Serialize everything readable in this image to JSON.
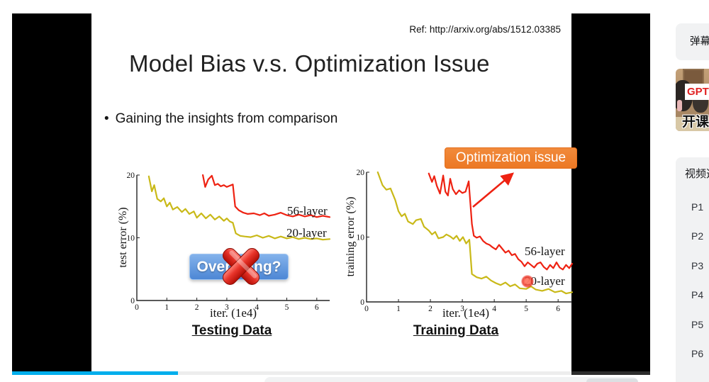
{
  "slide": {
    "ref": "Ref: http://arxiv.org/abs/1512.03385",
    "title": "Model Bias v.s. Optimization Issue",
    "bullet": "Gaining the insights from comparison",
    "overfitting_badge": "Overfitting?",
    "optimization_badge": "Optimization issue",
    "accent_orange": "#ED7D31",
    "accent_blue": "#4d87d5",
    "curve_red": "#ee2212",
    "curve_yellow": "#c9b918"
  },
  "chart_data": [
    {
      "type": "line",
      "title": "Testing Data",
      "xlabel": "iter. (1e4)",
      "ylabel": "test error (%)",
      "xlim": [
        0,
        6.43
      ],
      "ylim": [
        0,
        20
      ],
      "xticks": [
        0,
        1,
        2,
        3,
        4,
        5,
        6
      ],
      "yticks": [
        0,
        10,
        20
      ],
      "grid": false,
      "series": [
        {
          "name": "56-layer",
          "color": "#ee2212",
          "x": [
            2.2,
            2.28,
            2.38,
            2.5,
            2.6,
            2.7,
            2.8,
            2.9,
            3.0,
            3.1,
            3.2,
            3.28,
            3.4,
            3.55,
            3.7,
            3.9,
            4.1,
            4.25,
            4.4,
            4.6,
            4.8,
            5.0,
            5.2,
            5.4,
            5.6,
            5.8,
            6.0,
            6.2,
            6.43
          ],
          "y": [
            20.0,
            18.1,
            19.3,
            19.9,
            18.4,
            18.6,
            18.2,
            18.4,
            18.1,
            18.3,
            18.5,
            15.0,
            14.4,
            14.0,
            13.8,
            13.9,
            13.6,
            13.9,
            13.5,
            13.7,
            14.0,
            13.6,
            13.4,
            13.7,
            13.4,
            13.6,
            13.3,
            13.5,
            13.3
          ]
        },
        {
          "name": "20-layer",
          "color": "#c9b918",
          "x": [
            0.4,
            0.5,
            0.58,
            0.68,
            0.8,
            0.9,
            1.0,
            1.1,
            1.2,
            1.35,
            1.5,
            1.62,
            1.75,
            1.9,
            2.0,
            2.15,
            2.3,
            2.45,
            2.6,
            2.75,
            2.9,
            3.0,
            3.1,
            3.2,
            3.3,
            3.45,
            3.6,
            3.8,
            4.0,
            4.2,
            4.4,
            4.6,
            4.8,
            5.0,
            5.2,
            5.4,
            5.6,
            5.8,
            6.0,
            6.2,
            6.43
          ],
          "y": [
            19.8,
            17.4,
            18.4,
            16.2,
            15.8,
            16.3,
            15.0,
            15.6,
            14.5,
            14.9,
            14.1,
            14.6,
            13.8,
            14.2,
            13.2,
            13.9,
            13.1,
            13.7,
            12.9,
            13.4,
            12.7,
            13.1,
            12.6,
            12.4,
            10.7,
            10.3,
            10.2,
            10.1,
            10.4,
            10.0,
            10.3,
            9.9,
            10.2,
            9.9,
            10.1,
            9.8,
            10.0,
            9.8,
            9.9,
            9.7,
            9.8
          ]
        }
      ]
    },
    {
      "type": "line",
      "title": "Training Data",
      "xlabel": "iter. (1e4)",
      "ylabel": "training error (%)",
      "xlim": [
        0,
        6.44
      ],
      "ylim": [
        0,
        20
      ],
      "xticks": [
        0,
        1,
        2,
        3,
        4,
        5,
        6
      ],
      "yticks": [
        0,
        10,
        20
      ],
      "grid": false,
      "series": [
        {
          "name": "56-layer",
          "color": "#ee2212",
          "x": [
            1.95,
            2.05,
            2.12,
            2.2,
            2.3,
            2.4,
            2.47,
            2.55,
            2.62,
            2.7,
            2.8,
            2.9,
            3.0,
            3.1,
            3.2,
            3.3,
            3.36,
            3.45,
            3.55,
            3.65,
            3.75,
            3.85,
            3.95,
            4.05,
            4.15,
            4.25,
            4.35,
            4.45,
            4.55,
            4.65,
            4.75,
            4.85,
            4.95,
            5.05,
            5.15,
            5.25,
            5.35,
            5.45,
            5.55,
            5.65,
            5.75,
            5.85,
            5.95,
            6.05,
            6.15,
            6.25,
            6.35,
            6.44
          ],
          "y": [
            19.8,
            18.5,
            19.4,
            17.9,
            16.7,
            19.5,
            17.0,
            16.4,
            19.0,
            17.4,
            16.6,
            17.2,
            16.8,
            17.0,
            18.6,
            12.0,
            10.2,
            9.9,
            10.1,
            9.4,
            9.0,
            8.8,
            8.4,
            8.1,
            8.8,
            8.2,
            7.6,
            7.9,
            7.2,
            7.4,
            6.6,
            6.2,
            5.5,
            6.1,
            5.7,
            5.3,
            5.9,
            6.1,
            5.4,
            5.0,
            5.7,
            5.2,
            6.1,
            5.3,
            5.0,
            5.7,
            5.2,
            5.9
          ]
        },
        {
          "name": "20-layer",
          "color": "#c9b918",
          "x": [
            0.35,
            0.5,
            0.62,
            0.75,
            0.9,
            1.0,
            1.1,
            1.2,
            1.3,
            1.45,
            1.55,
            1.7,
            1.8,
            1.95,
            2.05,
            2.15,
            2.25,
            2.4,
            2.5,
            2.62,
            2.72,
            2.82,
            2.92,
            3.02,
            3.12,
            3.22,
            3.3,
            3.45,
            3.6,
            3.75,
            3.9,
            4.05,
            4.2,
            4.35,
            4.5,
            4.65,
            4.8,
            5.0,
            5.15,
            5.3,
            5.5,
            5.7,
            5.9,
            6.1,
            6.25,
            6.44
          ],
          "y": [
            20.0,
            18.0,
            17.3,
            17.5,
            15.7,
            14.0,
            13.2,
            13.6,
            12.4,
            12.0,
            12.6,
            12.8,
            11.6,
            11.0,
            10.4,
            10.8,
            9.8,
            10.0,
            10.4,
            10.1,
            9.7,
            10.2,
            9.4,
            10.0,
            9.0,
            9.6,
            4.3,
            3.8,
            3.6,
            3.9,
            3.3,
            2.9,
            2.6,
            3.0,
            2.4,
            2.7,
            2.1,
            2.0,
            2.4,
            1.9,
            1.7,
            2.0,
            1.5,
            1.7,
            1.3,
            1.5
          ]
        }
      ]
    }
  ],
  "player": {
    "progress_percent": 26,
    "progress_color": "#00aeec"
  },
  "sidebar": {
    "danmaku_panel_label": "弹幕列表",
    "ad_thumb": {
      "red_text": "GPT",
      "caption": "开课"
    },
    "playlist_panel_label": "视频选集",
    "episodes": [
      "P1",
      "P2",
      "P3",
      "P4",
      "P5",
      "P6"
    ]
  }
}
